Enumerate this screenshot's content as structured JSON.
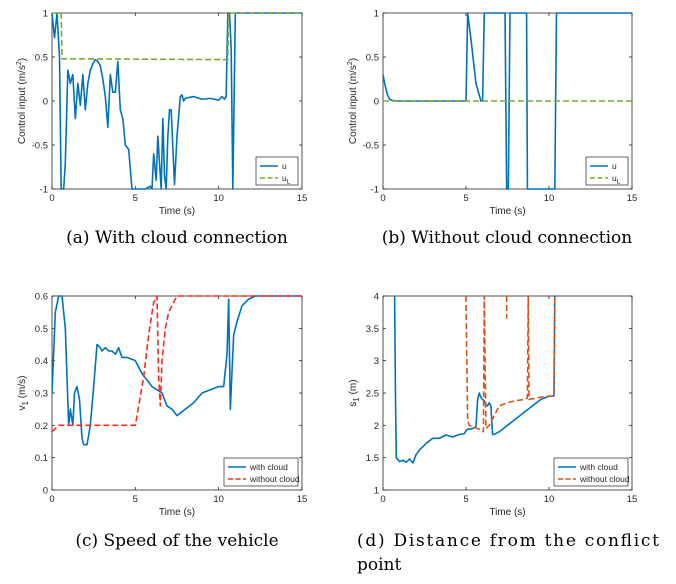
{
  "colors": {
    "blue": "#0072BD",
    "green": "#77AC30",
    "red": "#FF2A1A",
    "orange": "#D95319"
  },
  "chart_data": [
    {
      "id": "a",
      "type": "line",
      "caption": "(a) With cloud connection",
      "xlabel": "Time (s)",
      "ylabel": "Control input (m/s²)",
      "xlim": [
        0,
        15
      ],
      "ylim": [
        -1,
        1
      ],
      "xticks": [
        0,
        5,
        10,
        15
      ],
      "xtick_labels": [
        "0",
        "5",
        "10",
        "15"
      ],
      "yticks": [
        -1,
        -0.5,
        0,
        0.5,
        1
      ],
      "ytick_labels": [
        "-1",
        "-0.5",
        "0",
        "0.5",
        "1"
      ],
      "legend": {
        "position": "bottom-right",
        "entries": [
          {
            "label": "u",
            "sub": ""
          },
          {
            "label": "u",
            "sub": "L"
          }
        ]
      },
      "series": [
        {
          "name": "u",
          "color": "blue",
          "style": "solid",
          "x": [
            0,
            0.15,
            0.3,
            0.45,
            0.55,
            0.7,
            0.8,
            0.95,
            1.1,
            1.25,
            1.4,
            1.55,
            1.7,
            1.85,
            2.0,
            2.15,
            2.3,
            2.45,
            2.6,
            2.75,
            2.9,
            3.05,
            3.2,
            3.35,
            3.5,
            3.65,
            3.8,
            3.95,
            4.1,
            4.25,
            4.4,
            4.6,
            4.8,
            5.2,
            5.6,
            5.9,
            6.0,
            6.1,
            6.25,
            6.35,
            6.45,
            6.55,
            6.65,
            6.75,
            6.85,
            6.95,
            7.05,
            7.15,
            7.35,
            7.5,
            7.7,
            7.8,
            7.9,
            8.0,
            8.2,
            8.5,
            9.0,
            9.5,
            10.0,
            10.2,
            10.35,
            10.45,
            10.55,
            10.65,
            10.75,
            10.85,
            11.0,
            12.0,
            13.0,
            14.0,
            15.0
          ],
          "y": [
            1,
            0.72,
            1,
            0.5,
            -1,
            -1,
            -0.7,
            0.35,
            0.2,
            0.3,
            -0.2,
            0.2,
            -0.05,
            0.3,
            -0.1,
            0.2,
            0.35,
            0.42,
            0.47,
            0.45,
            0.4,
            0.25,
            0.05,
            -0.3,
            0.3,
            0.1,
            0.1,
            0.45,
            -0.1,
            -0.2,
            -0.5,
            -0.55,
            -1,
            -1,
            -1,
            -0.97,
            -1,
            -0.6,
            -0.9,
            -0.4,
            -0.7,
            -1,
            -0.2,
            -0.85,
            -1,
            -0.4,
            -0.1,
            -0.1,
            -0.95,
            -0.4,
            0.05,
            0.07,
            0.0,
            0.03,
            0.04,
            0.05,
            0.02,
            0.03,
            0.01,
            0.05,
            0.02,
            0.05,
            1,
            1,
            0.6,
            -1,
            1,
            1,
            1,
            1,
            1
          ]
        },
        {
          "name": "u_L",
          "color": "green",
          "style": "dashed",
          "x": [
            0,
            0.55,
            0.6,
            10.55,
            10.6,
            15
          ],
          "y": [
            1,
            1,
            0.48,
            0.47,
            1,
            1
          ]
        }
      ]
    },
    {
      "id": "b",
      "type": "line",
      "caption": "(b) Without cloud connection",
      "xlabel": "Time (s)",
      "ylabel": "Control input (m/s²)",
      "xlim": [
        0,
        15
      ],
      "ylim": [
        -1,
        1
      ],
      "xticks": [
        0,
        5,
        10,
        15
      ],
      "xtick_labels": [
        "0",
        "5",
        "10",
        "15"
      ],
      "yticks": [
        -1,
        -0.5,
        0,
        0.5,
        1
      ],
      "ytick_labels": [
        "-1",
        "-0.5",
        "0",
        "0.5",
        "1"
      ],
      "legend": {
        "position": "bottom-right",
        "entries": [
          {
            "label": "u",
            "sub": ""
          },
          {
            "label": "u",
            "sub": "L"
          }
        ]
      },
      "series": [
        {
          "name": "u",
          "color": "blue",
          "style": "solid",
          "x": [
            0,
            0.1,
            0.25,
            0.4,
            0.6,
            0.9,
            5.0,
            5.1,
            5.3,
            5.6,
            5.9,
            6.0,
            6.1,
            6.3,
            7.35,
            7.45,
            7.55,
            7.65,
            8.65,
            8.7,
            8.8,
            10.35,
            10.45,
            10.55,
            15
          ],
          "y": [
            0.3,
            0.2,
            0.08,
            0.02,
            0.005,
            0,
            0,
            1,
            0.7,
            0.2,
            0,
            0,
            1,
            1,
            1,
            -1,
            -1,
            1,
            1,
            -1,
            -1,
            -1,
            1,
            1,
            1
          ]
        },
        {
          "name": "u_L",
          "color": "green",
          "style": "dashed",
          "x": [
            0,
            15
          ],
          "y": [
            0,
            0
          ]
        }
      ]
    },
    {
      "id": "c",
      "type": "line",
      "caption": "(c) Speed of the vehicle",
      "xlabel": "Time (s)",
      "ylabel": "v",
      "ylabel_sub": "1",
      "ylabel_unit": " (m/s)",
      "xlim": [
        0,
        15
      ],
      "ylim": [
        0,
        0.6
      ],
      "xticks": [
        0,
        5,
        10,
        15
      ],
      "xtick_labels": [
        "0",
        "5",
        "10",
        "15"
      ],
      "yticks": [
        0,
        0.1,
        0.2,
        0.3,
        0.4,
        0.5,
        0.6
      ],
      "ytick_labels": [
        "0",
        "0.1",
        "0.2",
        "0.3",
        "0.4",
        "0.5",
        "0.6"
      ],
      "legend": {
        "position": "bottom-right",
        "entries": [
          {
            "label": "with cloud",
            "sub": ""
          },
          {
            "label": "without cloud",
            "sub": ""
          }
        ]
      },
      "series": [
        {
          "name": "with cloud",
          "color": "blue",
          "style": "solid",
          "x": [
            0,
            0.2,
            0.4,
            0.6,
            0.8,
            1.0,
            1.1,
            1.25,
            1.35,
            1.5,
            1.65,
            1.8,
            1.9,
            2.1,
            2.3,
            2.5,
            2.7,
            2.9,
            3.0,
            3.2,
            3.4,
            3.6,
            3.8,
            4.0,
            4.2,
            4.5,
            5.0,
            5.4,
            5.7,
            6.0,
            6.3,
            6.6,
            6.9,
            7.2,
            7.5,
            8.0,
            8.5,
            9.0,
            9.5,
            10.0,
            10.3,
            10.5,
            10.6,
            10.7,
            10.9,
            11.1,
            11.4,
            11.8,
            12.2,
            13.0,
            14.0,
            15.0
          ],
          "y": [
            0.3,
            0.55,
            0.6,
            0.6,
            0.5,
            0.2,
            0.25,
            0.2,
            0.3,
            0.32,
            0.28,
            0.16,
            0.14,
            0.14,
            0.2,
            0.32,
            0.45,
            0.44,
            0.43,
            0.44,
            0.43,
            0.43,
            0.42,
            0.44,
            0.41,
            0.41,
            0.4,
            0.36,
            0.34,
            0.32,
            0.31,
            0.3,
            0.26,
            0.25,
            0.23,
            0.25,
            0.27,
            0.3,
            0.31,
            0.32,
            0.32,
            0.42,
            0.59,
            0.25,
            0.48,
            0.52,
            0.57,
            0.59,
            0.6,
            0.6,
            0.6,
            0.6
          ]
        },
        {
          "name": "without cloud",
          "color": "red",
          "style": "dashed",
          "x": [
            0,
            0.2,
            0.4,
            0.6,
            5.0,
            5.2,
            5.5,
            5.8,
            6.1,
            6.3,
            6.4,
            6.5,
            6.6,
            6.8,
            7.0,
            7.3,
            7.5,
            7.8,
            8.5,
            10.0,
            15.0
          ],
          "y": [
            0.18,
            0.19,
            0.2,
            0.2,
            0.2,
            0.26,
            0.35,
            0.48,
            0.58,
            0.6,
            0.35,
            0.26,
            0.4,
            0.5,
            0.55,
            0.58,
            0.6,
            0.6,
            0.6,
            0.6,
            0.6
          ]
        }
      ]
    },
    {
      "id": "d",
      "type": "line",
      "caption": "(d) Distance from the conflict point",
      "xlabel": "Time (s)",
      "ylabel": "s",
      "ylabel_sub": "1",
      "ylabel_unit": " (m)",
      "xlim": [
        0,
        15
      ],
      "ylim": [
        1,
        4
      ],
      "xticks": [
        0,
        5,
        10,
        15
      ],
      "xtick_labels": [
        "0",
        "5",
        "10",
        "15"
      ],
      "yticks": [
        1,
        1.5,
        2,
        2.5,
        3,
        3.5,
        4
      ],
      "ytick_labels": [
        "1",
        "1.5",
        "2",
        "2.5",
        "3",
        "3.5",
        "4"
      ],
      "legend": {
        "position": "bottom-right",
        "entries": [
          {
            "label": "with cloud",
            "sub": ""
          },
          {
            "label": "without cloud",
            "sub": ""
          }
        ]
      },
      "series": [
        {
          "name": "with cloud",
          "color": "blue",
          "style": "solid",
          "x": [
            0.7,
            0.75,
            0.8,
            1.0,
            1.2,
            1.4,
            1.6,
            1.8,
            2.0,
            2.2,
            2.6,
            3.0,
            3.4,
            3.8,
            4.2,
            4.6,
            4.9,
            5.0,
            5.1,
            5.4,
            5.6,
            5.7,
            5.8,
            5.9,
            6.0,
            6.1,
            6.2,
            6.3,
            6.4,
            6.5,
            6.6,
            6.7,
            7.0,
            7.5,
            8.0,
            8.5,
            9.0,
            9.5,
            10.0,
            10.2,
            10.3,
            10.35,
            10.4
          ],
          "y": [
            4.0,
            2.5,
            1.5,
            1.44,
            1.46,
            1.43,
            1.48,
            1.42,
            1.55,
            1.62,
            1.72,
            1.8,
            1.8,
            1.85,
            1.82,
            1.86,
            1.87,
            1.92,
            1.94,
            1.95,
            1.98,
            2.4,
            2.5,
            2.43,
            2.4,
            2.38,
            2.32,
            2.3,
            2.35,
            2.3,
            1.86,
            1.86,
            1.9,
            2.0,
            2.1,
            2.2,
            2.3,
            2.4,
            2.45,
            2.45,
            2.46,
            4.0,
            4.0
          ]
        },
        {
          "name": "without cloud",
          "color": "orange",
          "style": "dashed",
          "x": [
            5.0,
            5.0,
            5.1,
            5.2,
            5.4,
            5.6,
            5.8,
            6.0,
            6.05,
            6.1,
            6.2,
            6.4,
            6.6,
            6.8,
            7.0,
            7.5,
            8.0,
            8.5,
            8.7,
            8.75,
            8.8,
            9.2,
            9.6,
            10.0,
            10.2,
            10.3,
            10.35
          ],
          "y": [
            4.0,
            3.9,
            2.08,
            2.0,
            1.98,
            1.96,
            1.94,
            1.92,
            1.9,
            4.0,
            1.95,
            2.0,
            2.1,
            2.2,
            2.3,
            2.35,
            2.38,
            2.4,
            2.42,
            4.0,
            2.4,
            2.42,
            2.44,
            2.45,
            2.45,
            2.46,
            4.0
          ]
        },
        {
          "name": "without cloud",
          "color": "orange",
          "style": "dashed",
          "x": [
            7.45,
            7.45
          ],
          "y": [
            4.0,
            3.65
          ]
        }
      ]
    }
  ]
}
